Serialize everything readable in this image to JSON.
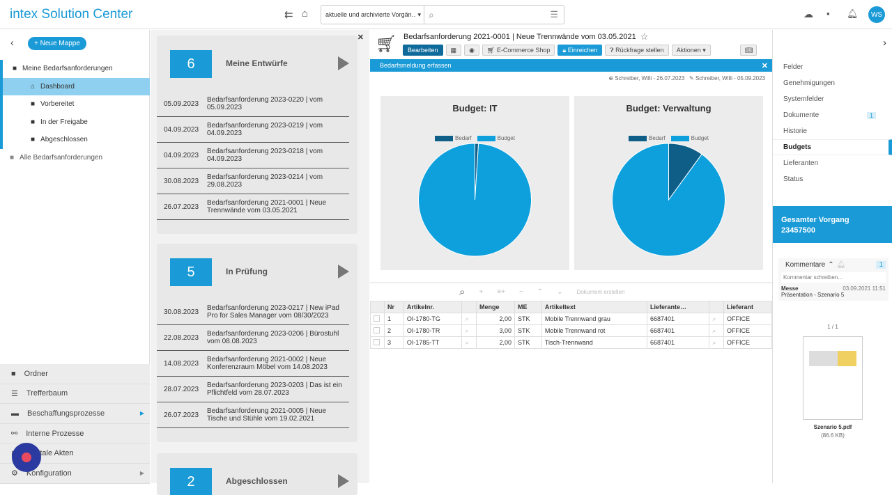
{
  "header": {
    "app_title": "intex Solution Center",
    "search_scope": "aktuelle und archivierte Vorgän…",
    "user_initials": "WS"
  },
  "sidebar": {
    "new_folder": "Neue Mappe",
    "tree": [
      {
        "label": "Meine Bedarfsanforderungen",
        "level": 0
      },
      {
        "label": "Dashboard",
        "level": 1,
        "active": true
      },
      {
        "label": "Vorbereitet",
        "level": 1
      },
      {
        "label": "In der Freigabe",
        "level": 1
      },
      {
        "label": "Abgeschlossen",
        "level": 1
      },
      {
        "label": "Alle Bedarfsanforderungen",
        "level": 0
      }
    ],
    "bottom": [
      "Ordner",
      "Trefferbaum",
      "Beschaffungsprozesse",
      "Interne Prozesse",
      "Digitale Akten",
      "Konfiguration"
    ]
  },
  "cards": [
    {
      "count": "6",
      "title": "Meine Entwürfe",
      "rows": [
        [
          "05.09.2023",
          "Bedarfsanforderung 2023-0220 | vom 05.09.2023"
        ],
        [
          "04.09.2023",
          "Bedarfsanforderung 2023-0219 | vom 04.09.2023"
        ],
        [
          "04.09.2023",
          "Bedarfsanforderung 2023-0218 | vom 04.09.2023"
        ],
        [
          "30.08.2023",
          "Bedarfsanforderung 2023-0214 | vom 29.08.2023"
        ],
        [
          "26.07.2023",
          "Bedarfsanforderung 2021-0001 | Neue Trennwände vom 03.05.2021"
        ]
      ]
    },
    {
      "count": "5",
      "title": "In Prüfung",
      "rows": [
        [
          "30.08.2023",
          "Bedarfsanforderung 2023-0217 | New iPad Pro for Sales Manager vom 08/30/2023"
        ],
        [
          "22.08.2023",
          "Bedarfsanforderung 2023-0206 | Bürostuhl vom 08.08.2023"
        ],
        [
          "14.08.2023",
          "Bedarfsanforderung 2021-0002 | Neue Konferenzraum Möbel vom 14.08.2023"
        ],
        [
          "28.07.2023",
          "Bedarfsanforderung 2023-0203 | Das ist ein Pflichtfeld vom 28.07.2023"
        ],
        [
          "26.07.2023",
          "Bedarfsanforderung 2021-0005 | Neue Tische und Stühle vom 19.02.2021"
        ]
      ]
    },
    {
      "count": "2",
      "title": "Abgeschlossen",
      "rows": []
    }
  ],
  "doc": {
    "title": "Bedarfsanforderung 2021-0001 | Neue Trennwände vom 03.05.2021",
    "buttons": {
      "edit": "Bearbeiten",
      "shop": "E-Commerce Shop",
      "submit": "Einreichen",
      "query": "Rückfrage stellen",
      "actions": "Aktionen"
    },
    "bar": "Bedarfsmeldung erfassen",
    "created": "Schreiber, Willi - 26.07.2023",
    "modified": "Schreiber, Willi - 05.09.2023",
    "create_doc": "Dokument erstellen"
  },
  "chart_data": [
    {
      "type": "pie",
      "title": "Budget: IT",
      "legend": [
        "Bedarf",
        "Budget"
      ],
      "values": [
        1,
        99
      ],
      "colors": [
        "#0f5e88",
        "#0ea0dc"
      ]
    },
    {
      "type": "pie",
      "title": "Budget: Verwaltung",
      "legend": [
        "Bedarf",
        "Budget"
      ],
      "values": [
        10,
        90
      ],
      "colors": [
        "#0f5e88",
        "#0ea0dc"
      ]
    }
  ],
  "table": {
    "headers": [
      "Nr",
      "Artikelnr.",
      "",
      "Menge",
      "ME",
      "Artikeltext",
      "Lieferante…",
      "",
      "Lieferant"
    ],
    "rows": [
      [
        "1",
        "OI-1780-TG",
        "2,00",
        "STK",
        "Mobile Trennwand grau",
        "6687401",
        "OFFICE"
      ],
      [
        "2",
        "OI-1780-TR",
        "3,00",
        "STK",
        "Mobile Trennwand rot",
        "6687401",
        "OFFICE"
      ],
      [
        "3",
        "OI-1785-TT",
        "2,00",
        "STK",
        "Tisch-Trennwand",
        "6687401",
        "OFFICE"
      ]
    ]
  },
  "right": {
    "items": [
      {
        "label": "Felder"
      },
      {
        "label": "Genehmigungen"
      },
      {
        "label": "Systemfelder"
      },
      {
        "label": "Dokumente",
        "badge": "1"
      },
      {
        "label": "Historie"
      },
      {
        "label": "Budgets",
        "active": true
      },
      {
        "label": "Lieferanten"
      },
      {
        "label": "Status"
      }
    ],
    "total_label": "Gesamter Vorgang",
    "total_id": "23457500",
    "comments": "Kommentare",
    "comments_count": "1",
    "comment_placeholder": "Kommentar schreiben...",
    "comment": {
      "author": "Messe",
      "date": "03.09.2021 11:51",
      "text": "Präsentation - Szenario 5"
    },
    "pages": "1 / 1",
    "file": "Szenario 5.pdf",
    "file_size": "(86.6 KB)"
  }
}
